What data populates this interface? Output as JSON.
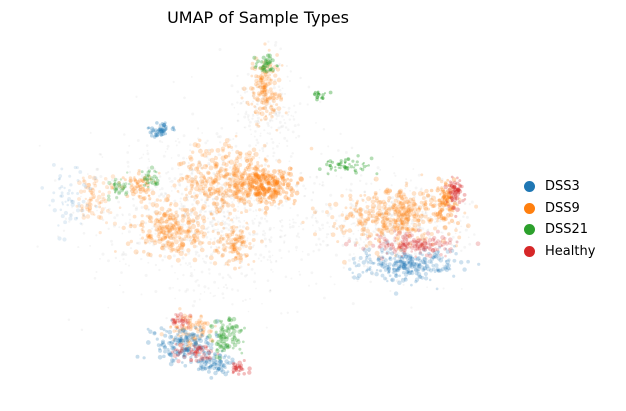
{
  "chart_data": {
    "type": "scatter",
    "title": "UMAP of Sample Types",
    "xlabel": "",
    "ylabel": "",
    "axes_visible": false,
    "grid": false,
    "legend_position": "right",
    "series": [
      {
        "name": "DSS3",
        "color": "#1f77b4"
      },
      {
        "name": "DSS9",
        "color": "#ff7f0e"
      },
      {
        "name": "DSS21",
        "color": "#2ca02c"
      },
      {
        "name": "Healthy",
        "color": "#d62728"
      }
    ]
  }
}
